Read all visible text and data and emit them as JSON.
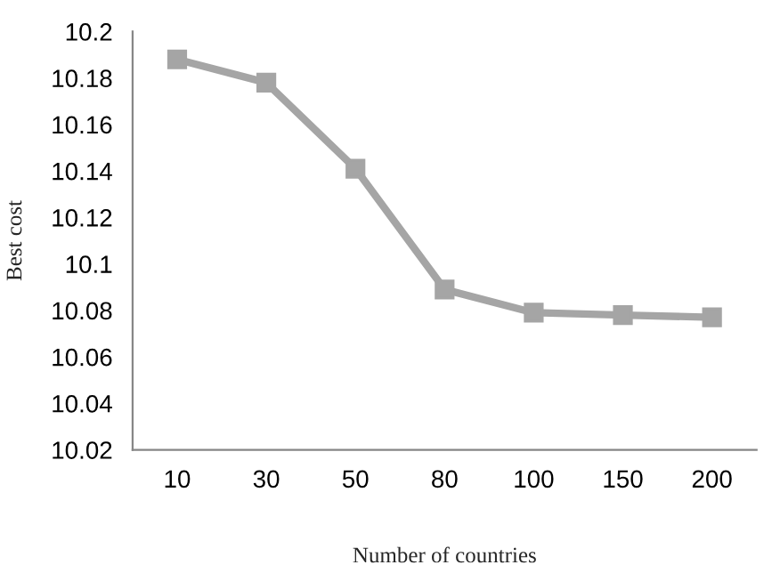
{
  "chart_data": {
    "type": "line",
    "xlabel": "Number of countries",
    "ylabel": "Best cost",
    "categories": [
      "10",
      "30",
      "50",
      "80",
      "100",
      "150",
      "200"
    ],
    "series": [
      {
        "color": "#a5a5a5",
        "values": [
          10.188,
          10.178,
          10.141,
          10.089,
          10.079,
          10.078,
          10.077
        ]
      }
    ],
    "ylim": [
      10.02,
      10.2
    ],
    "yticks": [
      10.02,
      10.04,
      10.06,
      10.08,
      10.1,
      10.12,
      10.14,
      10.16,
      10.18,
      10.2
    ],
    "grid": false,
    "legend": false,
    "marker": "square",
    "line_style": "solid"
  }
}
